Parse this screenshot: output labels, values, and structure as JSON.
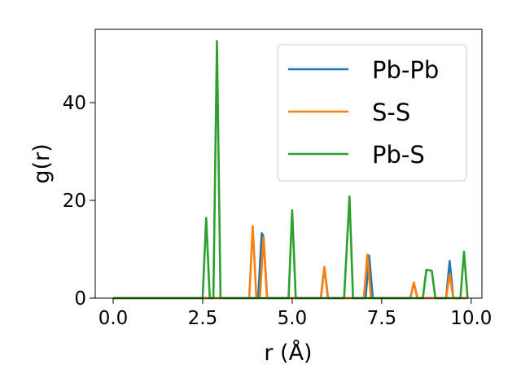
{
  "chart_data": {
    "type": "line",
    "xlabel": "r (Å)",
    "ylabel": "g(r)",
    "xlim": [
      -0.5,
      10.3
    ],
    "ylim": [
      0,
      55
    ],
    "xticks": [
      0.0,
      2.5,
      5.0,
      7.5,
      10.0
    ],
    "xtick_labels": [
      "0.0",
      "2.5",
      "5.0",
      "7.5",
      "10.0"
    ],
    "yticks": [
      0,
      20,
      40
    ],
    "ytick_labels": [
      "0",
      "20",
      "40"
    ],
    "grid": false,
    "legend_position": "top-right",
    "series": [
      {
        "name": "Pb-Pb",
        "color": "#1f77b4",
        "x": [
          0.0,
          2.5,
          3.95,
          4.05,
          4.15,
          4.2,
          4.3,
          5.0,
          5.8,
          5.9,
          6.0,
          7.05,
          7.15,
          7.25,
          8.3,
          8.4,
          8.5,
          9.3,
          9.4,
          9.5,
          9.9
        ],
        "y": [
          0,
          0,
          0,
          0,
          13.3,
          12.6,
          0,
          0,
          0,
          6.3,
          0,
          0,
          8.7,
          0,
          0,
          3.1,
          0,
          0,
          7.6,
          0,
          0
        ]
      },
      {
        "name": "S-S",
        "color": "#ff7f0e",
        "x": [
          0.0,
          2.5,
          3.8,
          3.9,
          4.0,
          4.1,
          4.2,
          4.3,
          5.0,
          5.8,
          5.9,
          6.0,
          7.0,
          7.1,
          7.2,
          8.3,
          8.4,
          8.5,
          9.3,
          9.4,
          9.5,
          9.9
        ],
        "y": [
          0,
          0,
          0,
          14.7,
          0,
          0,
          12.5,
          0,
          0,
          0,
          6.4,
          0,
          0,
          8.9,
          0,
          0,
          3.2,
          0,
          0,
          4.9,
          0,
          0
        ]
      },
      {
        "name": "Pb-S",
        "color": "#2ca02c",
        "x": [
          0.0,
          2.5,
          2.6,
          2.7,
          2.8,
          2.9,
          3.0,
          4.9,
          5.0,
          5.1,
          6.45,
          6.6,
          6.7,
          8.65,
          8.75,
          8.9,
          9.0,
          9.7,
          9.8,
          9.9
        ],
        "y": [
          0,
          0,
          16.4,
          0,
          0,
          52.6,
          0,
          0,
          18.0,
          0,
          0,
          20.8,
          0,
          0,
          5.8,
          5.6,
          0,
          0,
          9.5,
          0
        ]
      }
    ]
  }
}
